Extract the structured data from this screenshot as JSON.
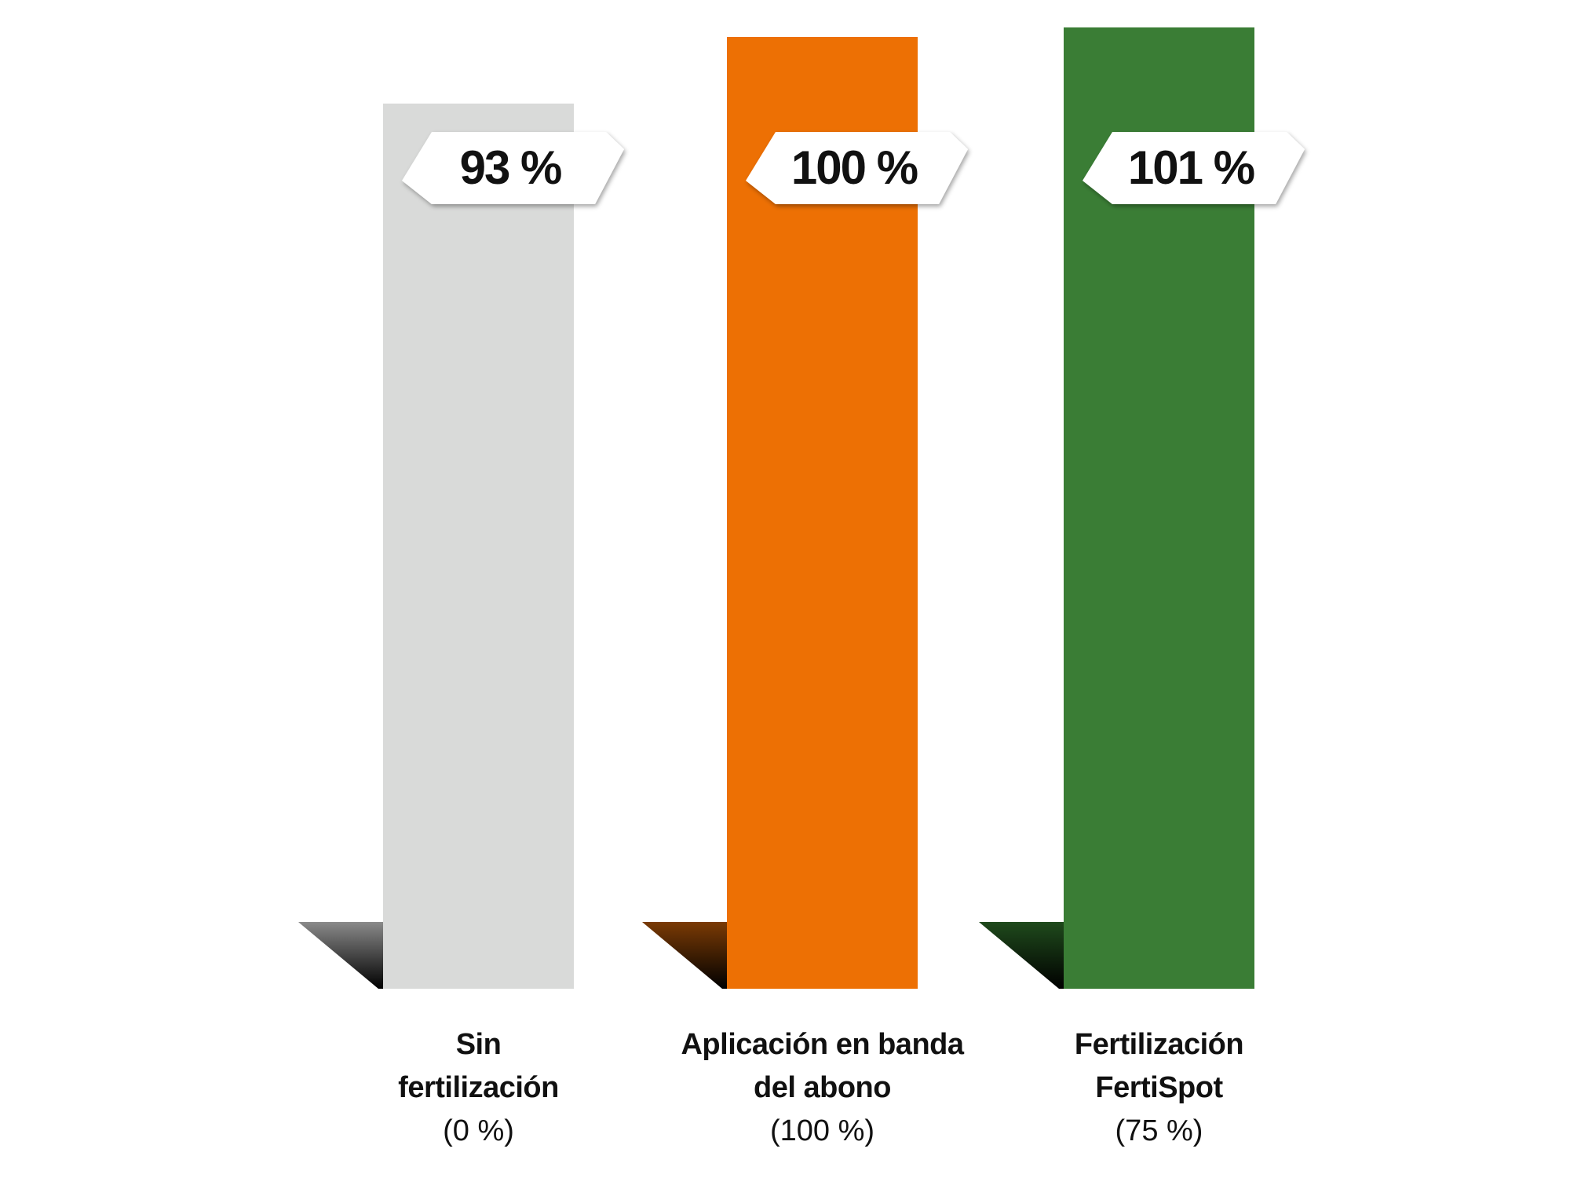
{
  "chart_data": {
    "type": "bar",
    "categories": [
      "Sin\nfertilización",
      "Aplicación en banda\ndel abono",
      "Fertilización\nFertiSpot"
    ],
    "category_notes": [
      "(0 %)",
      "(100 %)",
      "(75 %)"
    ],
    "values": [
      93,
      100,
      101
    ],
    "value_labels": [
      "93 %",
      "100 %",
      "101 %"
    ],
    "colors": [
      "#d9dad9",
      "#ed7004",
      "#3a7d35"
    ],
    "shadow_colors": [
      "#8a8a8a",
      "#7a3a05",
      "#1f4a1c"
    ]
  }
}
